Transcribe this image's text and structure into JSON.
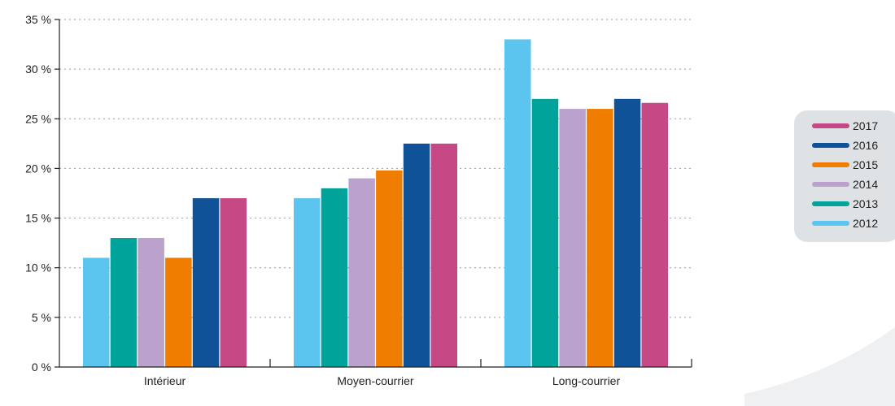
{
  "chart_data": {
    "type": "bar",
    "categories": [
      "Intérieur",
      "Moyen-courrier",
      "Long-courrier"
    ],
    "series": [
      {
        "name": "2012",
        "color": "#5bc5ef",
        "values": [
          11,
          17,
          33
        ]
      },
      {
        "name": "2013",
        "color": "#00a39a",
        "values": [
          13,
          18,
          27
        ]
      },
      {
        "name": "2014",
        "color": "#bba2cd",
        "values": [
          13,
          19,
          26
        ]
      },
      {
        "name": "2015",
        "color": "#ef7d00",
        "values": [
          11,
          19.8,
          26
        ]
      },
      {
        "name": "2016",
        "color": "#0f5298",
        "values": [
          17,
          22.5,
          27
        ]
      },
      {
        "name": "2017",
        "color": "#c54984",
        "values": [
          17,
          22.5,
          26.6
        ]
      }
    ],
    "ylim": [
      0,
      35
    ],
    "yticks": [
      0,
      5,
      10,
      15,
      20,
      25,
      30,
      35
    ],
    "ytick_labels": [
      "0 %",
      "5 %",
      "10 %",
      "15 %",
      "20 %",
      "25 %",
      "30 %",
      "35 %"
    ],
    "grid": "horizontal dotted",
    "legend_position": "right",
    "legend_order": [
      "2017",
      "2016",
      "2015",
      "2014",
      "2013",
      "2012"
    ],
    "title": "",
    "xlabel": "",
    "ylabel": ""
  }
}
